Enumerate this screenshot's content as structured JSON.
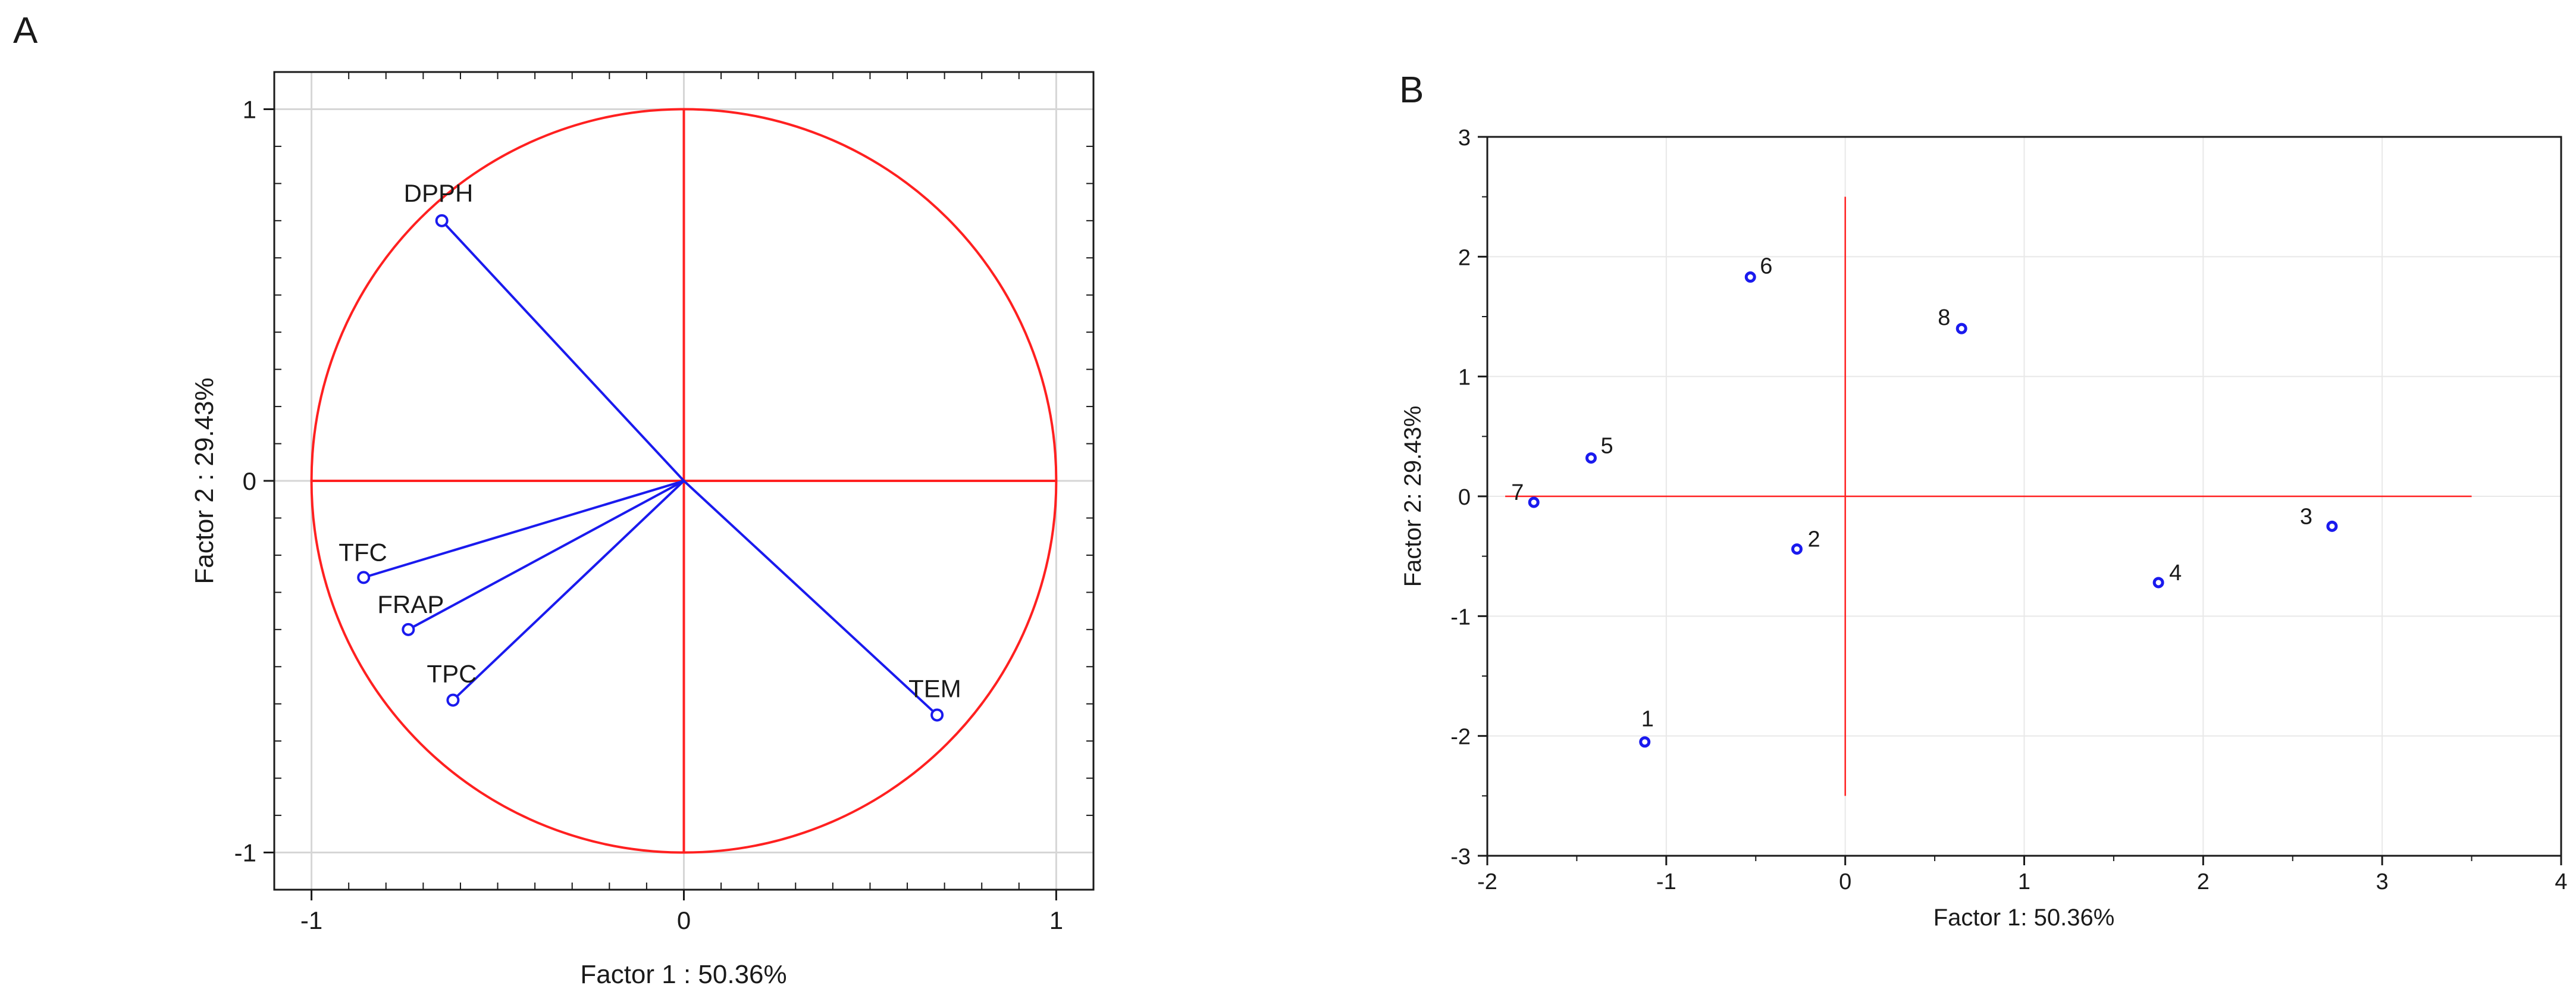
{
  "colors": {
    "circle": "#ff2020",
    "axis": "#ff2020",
    "vector": "#1a1aee",
    "point": "#1a1aee",
    "grid": "#d6d6d6",
    "frame": "#1a1a1a"
  },
  "panels": {
    "A": {
      "label": "A"
    },
    "B": {
      "label": "B"
    }
  },
  "chart_data": [
    {
      "panel": "A",
      "type": "scatter",
      "title": "",
      "xlabel": "Factor 1 : 50.36%",
      "ylabel": "Factor 2 : 29.43%",
      "xlim": [
        -1.1,
        1.1
      ],
      "ylim": [
        -1.1,
        1.1
      ],
      "xticks": [
        -1,
        0,
        1
      ],
      "yticks": [
        -1,
        0,
        1
      ],
      "xtick_labels": [
        "-1",
        "0",
        "1"
      ],
      "ytick_labels": [
        "-1",
        "0",
        "1"
      ],
      "grid": true,
      "unit_circle": true,
      "vectors": [
        {
          "label": "DPPH",
          "x": -0.65,
          "y": 0.7
        },
        {
          "label": "TFC",
          "x": -0.86,
          "y": -0.26
        },
        {
          "label": "FRAP",
          "x": -0.74,
          "y": -0.4
        },
        {
          "label": "TPC",
          "x": -0.62,
          "y": -0.59
        },
        {
          "label": "TEM",
          "x": 0.68,
          "y": -0.63
        }
      ]
    },
    {
      "panel": "B",
      "type": "scatter",
      "title": "",
      "xlabel": "Factor 1: 50.36%",
      "ylabel": "Factor 2: 29.43%",
      "xlim": [
        -2,
        4
      ],
      "ylim": [
        -3,
        3
      ],
      "xticks": [
        -2,
        -1,
        0,
        1,
        2,
        3,
        4
      ],
      "yticks": [
        -3,
        -2,
        -1,
        0,
        1,
        2,
        3
      ],
      "xtick_labels": [
        "-2",
        "-1",
        "0",
        "1",
        "2",
        "3",
        "4"
      ],
      "ytick_labels": [
        "-3",
        "-2",
        "-1",
        "0",
        "1",
        "2",
        "3"
      ],
      "grid": true,
      "reference_lines": {
        "horizontal": {
          "y": 0,
          "x_from": -1.9,
          "x_to": 3.5
        },
        "vertical": {
          "x": 0,
          "y_from": -2.5,
          "y_to": 2.5
        }
      },
      "points": [
        {
          "label": "1",
          "x": -1.12,
          "y": -2.05
        },
        {
          "label": "2",
          "x": -0.27,
          "y": -0.44
        },
        {
          "label": "3",
          "x": 2.72,
          "y": -0.25
        },
        {
          "label": "4",
          "x": 1.75,
          "y": -0.72
        },
        {
          "label": "5",
          "x": -1.42,
          "y": 0.32
        },
        {
          "label": "6",
          "x": -0.53,
          "y": 1.83
        },
        {
          "label": "7",
          "x": -1.74,
          "y": -0.05
        },
        {
          "label": "8",
          "x": 0.65,
          "y": 1.4
        }
      ]
    }
  ]
}
